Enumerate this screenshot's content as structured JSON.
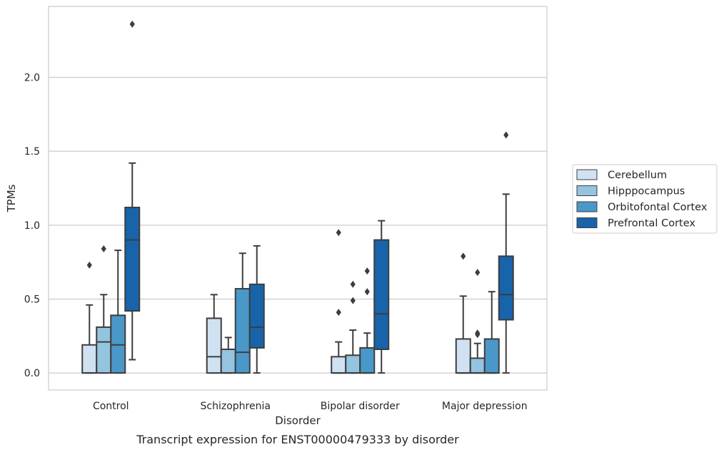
{
  "chart_data": {
    "type": "box",
    "xlabel": "Disorder",
    "ylabel": "TPMs",
    "caption": "Transcript expression for ENST00000479333 by disorder",
    "ylim": [
      -0.115,
      2.48
    ],
    "yticks": [
      0.0,
      0.5,
      1.0,
      1.5,
      2.0
    ],
    "ytick_labels": [
      "0.0",
      "0.5",
      "1.0",
      "1.5",
      "2.0"
    ],
    "grid": "horizontal",
    "legend_position": "right",
    "categories": [
      "Control",
      "Schizophrenia",
      "Bipolar disorder",
      "Major depression"
    ],
    "series": [
      {
        "name": "Cerebellum",
        "color": "#d0e1f2",
        "boxes": [
          {
            "q1": 0.0,
            "median": 0.0,
            "q3": 0.19,
            "whisker_low": 0.0,
            "whisker_high": 0.46,
            "outliers": [
              0.73
            ]
          },
          {
            "q1": 0.0,
            "median": 0.11,
            "q3": 0.37,
            "whisker_low": 0.0,
            "whisker_high": 0.53,
            "outliers": []
          },
          {
            "q1": 0.0,
            "median": 0.0,
            "q3": 0.11,
            "whisker_low": 0.0,
            "whisker_high": 0.21,
            "outliers": [
              0.41,
              0.95
            ]
          },
          {
            "q1": 0.0,
            "median": 0.0,
            "q3": 0.23,
            "whisker_low": 0.0,
            "whisker_high": 0.52,
            "outliers": [
              0.79
            ]
          }
        ]
      },
      {
        "name": "Hipppocampus",
        "color": "#94c4df",
        "boxes": [
          {
            "q1": 0.0,
            "median": 0.21,
            "q3": 0.31,
            "whisker_low": 0.0,
            "whisker_high": 0.53,
            "outliers": [
              0.84
            ]
          },
          {
            "q1": 0.0,
            "median": 0.0,
            "q3": 0.16,
            "whisker_low": 0.0,
            "whisker_high": 0.24,
            "outliers": []
          },
          {
            "q1": 0.0,
            "median": 0.0,
            "q3": 0.12,
            "whisker_low": 0.0,
            "whisker_high": 0.29,
            "outliers": [
              0.49,
              0.6
            ]
          },
          {
            "q1": 0.0,
            "median": 0.0,
            "q3": 0.1,
            "whisker_low": 0.0,
            "whisker_high": 0.2,
            "outliers": [
              0.26,
              0.27,
              0.68
            ]
          }
        ]
      },
      {
        "name": "Orbitofontal Cortex",
        "color": "#4a98c9",
        "boxes": [
          {
            "q1": 0.0,
            "median": 0.19,
            "q3": 0.39,
            "whisker_low": 0.0,
            "whisker_high": 0.83,
            "outliers": []
          },
          {
            "q1": 0.0,
            "median": 0.14,
            "q3": 0.57,
            "whisker_low": 0.0,
            "whisker_high": 0.81,
            "outliers": []
          },
          {
            "q1": 0.0,
            "median": 0.0,
            "q3": 0.17,
            "whisker_low": 0.0,
            "whisker_high": 0.27,
            "outliers": [
              0.55,
              0.69
            ]
          },
          {
            "q1": 0.0,
            "median": 0.0,
            "q3": 0.23,
            "whisker_low": 0.0,
            "whisker_high": 0.55,
            "outliers": []
          }
        ]
      },
      {
        "name": "Prefrontal Cortex",
        "color": "#1764ab",
        "boxes": [
          {
            "q1": 0.42,
            "median": 0.9,
            "q3": 1.12,
            "whisker_low": 0.09,
            "whisker_high": 1.42,
            "outliers": [
              2.36
            ]
          },
          {
            "q1": 0.17,
            "median": 0.31,
            "q3": 0.6,
            "whisker_low": 0.0,
            "whisker_high": 0.86,
            "outliers": []
          },
          {
            "q1": 0.16,
            "median": 0.4,
            "q3": 0.9,
            "whisker_low": 0.0,
            "whisker_high": 1.03,
            "outliers": []
          },
          {
            "q1": 0.36,
            "median": 0.53,
            "q3": 0.79,
            "whisker_low": 0.0,
            "whisker_high": 1.21,
            "outliers": [
              1.61
            ]
          }
        ]
      }
    ]
  }
}
